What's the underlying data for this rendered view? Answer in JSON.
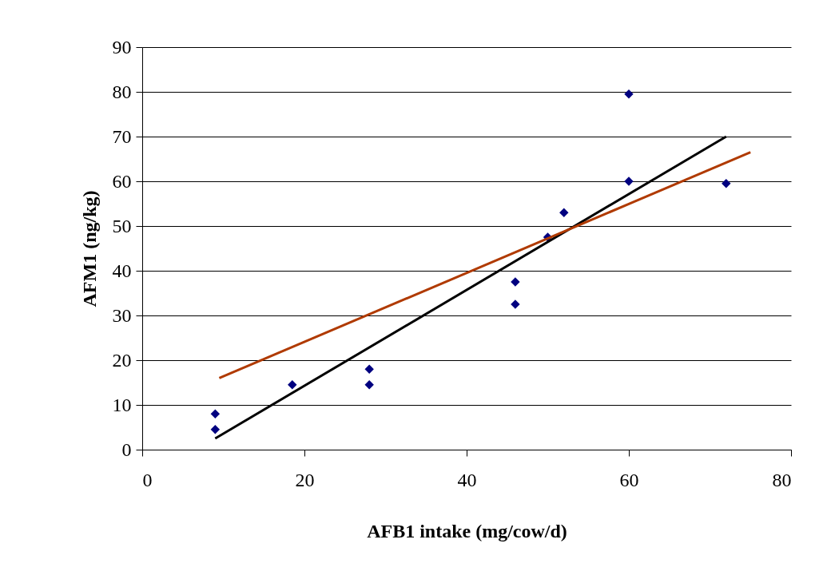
{
  "chart_data": {
    "type": "scatter",
    "xlabel": "AFB1 intake (mg/cow/d)",
    "ylabel": "AFM1 (ng/kg)",
    "xlim": [
      0,
      80
    ],
    "xticks": [
      0,
      20,
      40,
      60,
      80
    ],
    "ylim": [
      0,
      90
    ],
    "yticks": [
      0,
      10,
      20,
      30,
      40,
      50,
      60,
      70,
      80,
      90
    ],
    "grid": "y",
    "series": [
      {
        "color": "#000080",
        "marker": "diamond",
        "x": [
          9,
          9,
          18.5,
          28,
          28,
          46,
          46,
          50,
          52,
          60,
          60,
          72
        ],
        "values": [
          8,
          4.5,
          14.5,
          18,
          14.5,
          37.5,
          32.5,
          47.5,
          53,
          79.5,
          60,
          59.5
        ]
      },
      {
        "type": "line",
        "color": "#000000",
        "marker": "none",
        "x": [
          9,
          72
        ],
        "values": [
          2.5,
          70
        ]
      },
      {
        "type": "line",
        "color": "#b03a00",
        "marker": "none",
        "x": [
          9.5,
          75
        ],
        "values": [
          16,
          66.5
        ]
      }
    ]
  }
}
